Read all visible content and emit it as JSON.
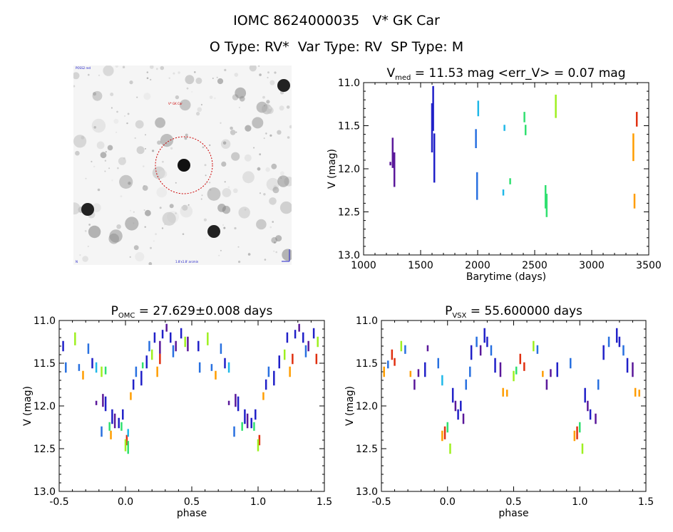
{
  "header": {
    "line1": "IOMC 8624000035   V* GK Car",
    "line2": "O Type: RV*  Var Type: RV  SP Type: M"
  },
  "finder_chart": {
    "label_top_left": "POSS2 red",
    "label_target": "V* GK Car",
    "label_bottom_left": "N",
    "label_bottom_center": "1.8'x1.8' arcmin",
    "circle_color": "#cc0000"
  },
  "colors": [
    "#5a189a",
    "#2020c8",
    "#2870e0",
    "#20b8e8",
    "#30e070",
    "#9ef020",
    "#ff9d00",
    "#e03010"
  ],
  "chart_data": [
    {
      "type": "scatter",
      "id": "lightcurve",
      "title_main": "V",
      "title_sub": "med",
      "title_rest": " = 11.53 mag <err_V> = 0.07 mag",
      "xlabel": "Barytime (days)",
      "ylabel": "V (mag)",
      "xlim": [
        1000,
        3500
      ],
      "ylim": [
        13.0,
        11.0
      ],
      "xticks": [
        1000,
        1500,
        2000,
        2500,
        3000,
        3500
      ],
      "yticks": [
        11.0,
        11.5,
        12.0,
        12.5,
        13.0
      ],
      "segments": [
        {
          "x": 1235,
          "y0": 11.93,
          "y1": 11.95,
          "c": 0
        },
        {
          "x": 1255,
          "y0": 11.65,
          "y1": 11.98,
          "c": 0
        },
        {
          "x": 1270,
          "y0": 11.82,
          "y1": 12.2,
          "c": 0
        },
        {
          "x": 1600,
          "y0": 11.25,
          "y1": 11.8,
          "c": 1
        },
        {
          "x": 1610,
          "y0": 11.05,
          "y1": 11.55,
          "c": 1
        },
        {
          "x": 1620,
          "y0": 11.6,
          "y1": 12.15,
          "c": 1
        },
        {
          "x": 1985,
          "y0": 11.55,
          "y1": 11.75,
          "c": 2
        },
        {
          "x": 1995,
          "y0": 12.05,
          "y1": 12.35,
          "c": 2
        },
        {
          "x": 2005,
          "y0": 11.22,
          "y1": 11.38,
          "c": 3
        },
        {
          "x": 2225,
          "y0": 12.25,
          "y1": 12.3,
          "c": 3
        },
        {
          "x": 2235,
          "y0": 11.5,
          "y1": 11.55,
          "c": 3
        },
        {
          "x": 2285,
          "y0": 12.12,
          "y1": 12.17,
          "c": 4
        },
        {
          "x": 2410,
          "y0": 11.35,
          "y1": 11.45,
          "c": 4
        },
        {
          "x": 2420,
          "y0": 11.5,
          "y1": 11.6,
          "c": 4
        },
        {
          "x": 2595,
          "y0": 12.2,
          "y1": 12.45,
          "c": 4
        },
        {
          "x": 2605,
          "y0": 12.3,
          "y1": 12.55,
          "c": 4
        },
        {
          "x": 2685,
          "y0": 11.15,
          "y1": 11.4,
          "c": 5
        },
        {
          "x": 3365,
          "y0": 11.6,
          "y1": 11.9,
          "c": 6
        },
        {
          "x": 3375,
          "y0": 12.3,
          "y1": 12.45,
          "c": 6
        },
        {
          "x": 3395,
          "y0": 11.35,
          "y1": 11.5,
          "c": 7
        }
      ]
    },
    {
      "type": "scatter",
      "id": "phase_omc",
      "title_main": "P",
      "title_sub": "OMC",
      "title_rest": " = 27.629±0.008 days",
      "xlabel": "phase",
      "ylabel": "V (mag)",
      "xlim": [
        -0.5,
        1.5
      ],
      "ylim": [
        13.0,
        11.0
      ],
      "xticks": [
        -0.5,
        0.0,
        0.5,
        1.0,
        1.5
      ],
      "yticks": [
        11.0,
        11.5,
        12.0,
        12.5,
        13.0
      ],
      "segments": [
        {
          "x": -0.47,
          "y0": 11.25,
          "y1": 11.35,
          "c": 1
        },
        {
          "x": -0.45,
          "y0": 11.5,
          "y1": 11.6,
          "c": 2
        },
        {
          "x": -0.38,
          "y0": 11.15,
          "y1": 11.28,
          "c": 5
        },
        {
          "x": -0.35,
          "y0": 11.52,
          "y1": 11.58,
          "c": 2
        },
        {
          "x": -0.32,
          "y0": 11.6,
          "y1": 11.68,
          "c": 6
        },
        {
          "x": -0.28,
          "y0": 11.28,
          "y1": 11.38,
          "c": 2
        },
        {
          "x": -0.25,
          "y0": 11.45,
          "y1": 11.55,
          "c": 1
        },
        {
          "x": -0.22,
          "y0": 11.5,
          "y1": 11.6,
          "c": 3
        },
        {
          "x": -0.18,
          "y0": 11.55,
          "y1": 11.65,
          "c": 5
        },
        {
          "x": -0.15,
          "y0": 11.55,
          "y1": 11.62,
          "c": 4
        },
        {
          "x": -0.22,
          "y0": 11.95,
          "y1": 11.98,
          "c": 0
        },
        {
          "x": -0.17,
          "y0": 11.87,
          "y1": 12.0,
          "c": 0
        },
        {
          "x": -0.15,
          "y0": 11.9,
          "y1": 12.05,
          "c": 1
        },
        {
          "x": -0.1,
          "y0": 12.05,
          "y1": 12.2,
          "c": 1
        },
        {
          "x": -0.08,
          "y0": 12.1,
          "y1": 12.25,
          "c": 0
        },
        {
          "x": -0.05,
          "y0": 12.15,
          "y1": 12.25,
          "c": 1
        },
        {
          "x": -0.03,
          "y0": 12.2,
          "y1": 12.28,
          "c": 4
        },
        {
          "x": -0.02,
          "y0": 12.05,
          "y1": 12.15,
          "c": 1
        },
        {
          "x": 0.01,
          "y0": 12.35,
          "y1": 12.45,
          "c": 7
        },
        {
          "x": 0.02,
          "y0": 12.28,
          "y1": 12.35,
          "c": 3
        },
        {
          "x": -0.11,
          "y0": 12.3,
          "y1": 12.38,
          "c": 6
        },
        {
          "x": -0.12,
          "y0": 12.2,
          "y1": 12.28,
          "c": 4
        },
        {
          "x": -0.18,
          "y0": 12.25,
          "y1": 12.35,
          "c": 2
        },
        {
          "x": 0.0,
          "y0": 12.4,
          "y1": 12.52,
          "c": 5
        },
        {
          "x": 0.02,
          "y0": 12.42,
          "y1": 12.55,
          "c": 4
        },
        {
          "x": 0.04,
          "y0": 11.85,
          "y1": 11.92,
          "c": 6
        },
        {
          "x": 0.06,
          "y0": 11.7,
          "y1": 11.8,
          "c": 1
        },
        {
          "x": 0.08,
          "y0": 11.55,
          "y1": 11.65,
          "c": 2
        },
        {
          "x": 0.12,
          "y0": 11.6,
          "y1": 11.75,
          "c": 1
        },
        {
          "x": 0.13,
          "y0": 11.5,
          "y1": 11.55,
          "c": 4
        },
        {
          "x": 0.16,
          "y0": 11.42,
          "y1": 11.55,
          "c": 1
        },
        {
          "x": 0.2,
          "y0": 11.35,
          "y1": 11.45,
          "c": 5
        },
        {
          "x": 0.18,
          "y0": 11.25,
          "y1": 11.35,
          "c": 2
        },
        {
          "x": 0.22,
          "y0": 11.15,
          "y1": 11.25,
          "c": 1
        },
        {
          "x": 0.26,
          "y0": 11.25,
          "y1": 11.38,
          "c": 0
        },
        {
          "x": 0.28,
          "y0": 11.12,
          "y1": 11.2,
          "c": 1
        },
        {
          "x": 0.31,
          "y0": 11.05,
          "y1": 11.12,
          "c": 0
        },
        {
          "x": 0.24,
          "y0": 11.55,
          "y1": 11.65,
          "c": 6
        },
        {
          "x": 0.26,
          "y0": 11.4,
          "y1": 11.5,
          "c": 7
        },
        {
          "x": 0.34,
          "y0": 11.15,
          "y1": 11.25,
          "c": 1
        },
        {
          "x": 0.36,
          "y0": 11.3,
          "y1": 11.42,
          "c": 2
        },
        {
          "x": 0.38,
          "y0": 11.25,
          "y1": 11.35,
          "c": 0
        },
        {
          "x": 0.42,
          "y0": 11.1,
          "y1": 11.2,
          "c": 1
        },
        {
          "x": 0.45,
          "y0": 11.2,
          "y1": 11.3,
          "c": 5
        },
        {
          "x": 0.47,
          "y0": 11.2,
          "y1": 11.35,
          "c": 0
        },
        {
          "x": 0.55,
          "y0": 11.25,
          "y1": 11.35,
          "c": 1
        },
        {
          "x": 0.56,
          "y0": 11.5,
          "y1": 11.6,
          "c": 2
        },
        {
          "x": 0.62,
          "y0": 11.15,
          "y1": 11.28,
          "c": 5
        },
        {
          "x": 0.65,
          "y0": 11.52,
          "y1": 11.58,
          "c": 2
        },
        {
          "x": 0.68,
          "y0": 11.6,
          "y1": 11.68,
          "c": 6
        },
        {
          "x": 0.72,
          "y0": 11.28,
          "y1": 11.38,
          "c": 2
        },
        {
          "x": 0.75,
          "y0": 11.45,
          "y1": 11.55,
          "c": 1
        },
        {
          "x": 0.78,
          "y0": 11.5,
          "y1": 11.6,
          "c": 3
        },
        {
          "x": 0.78,
          "y0": 11.95,
          "y1": 11.98,
          "c": 0
        },
        {
          "x": 0.83,
          "y0": 11.87,
          "y1": 12.0,
          "c": 0
        },
        {
          "x": 0.85,
          "y0": 11.9,
          "y1": 12.05,
          "c": 1
        },
        {
          "x": 0.9,
          "y0": 12.05,
          "y1": 12.2,
          "c": 1
        },
        {
          "x": 0.92,
          "y0": 12.1,
          "y1": 12.25,
          "c": 0
        },
        {
          "x": 0.95,
          "y0": 12.15,
          "y1": 12.25,
          "c": 1
        },
        {
          "x": 0.97,
          "y0": 12.2,
          "y1": 12.28,
          "c": 4
        },
        {
          "x": 0.98,
          "y0": 12.05,
          "y1": 12.15,
          "c": 1
        },
        {
          "x": 1.01,
          "y0": 12.35,
          "y1": 12.45,
          "c": 7
        },
        {
          "x": 0.82,
          "y0": 12.25,
          "y1": 12.35,
          "c": 2
        },
        {
          "x": 0.88,
          "y0": 12.2,
          "y1": 12.28,
          "c": 4
        },
        {
          "x": 1.0,
          "y0": 12.4,
          "y1": 12.52,
          "c": 5
        },
        {
          "x": 1.04,
          "y0": 11.85,
          "y1": 11.92,
          "c": 6
        },
        {
          "x": 1.06,
          "y0": 11.7,
          "y1": 11.8,
          "c": 1
        },
        {
          "x": 1.08,
          "y0": 11.55,
          "y1": 11.65,
          "c": 2
        },
        {
          "x": 1.12,
          "y0": 11.6,
          "y1": 11.75,
          "c": 1
        },
        {
          "x": 1.16,
          "y0": 11.42,
          "y1": 11.55,
          "c": 1
        },
        {
          "x": 1.2,
          "y0": 11.35,
          "y1": 11.45,
          "c": 5
        },
        {
          "x": 1.22,
          "y0": 11.15,
          "y1": 11.25,
          "c": 1
        },
        {
          "x": 1.24,
          "y0": 11.55,
          "y1": 11.65,
          "c": 6
        },
        {
          "x": 1.26,
          "y0": 11.4,
          "y1": 11.5,
          "c": 7
        },
        {
          "x": 1.28,
          "y0": 11.12,
          "y1": 11.2,
          "c": 1
        },
        {
          "x": 1.31,
          "y0": 11.05,
          "y1": 11.12,
          "c": 0
        },
        {
          "x": 1.34,
          "y0": 11.15,
          "y1": 11.25,
          "c": 1
        },
        {
          "x": 1.36,
          "y0": 11.3,
          "y1": 11.42,
          "c": 2
        },
        {
          "x": 1.38,
          "y0": 11.25,
          "y1": 11.35,
          "c": 0
        },
        {
          "x": 1.42,
          "y0": 11.1,
          "y1": 11.2,
          "c": 1
        },
        {
          "x": 1.44,
          "y0": 11.4,
          "y1": 11.5,
          "c": 7
        },
        {
          "x": 1.45,
          "y0": 11.2,
          "y1": 11.3,
          "c": 5
        }
      ]
    },
    {
      "type": "scatter",
      "id": "phase_vsx",
      "title_main": "P",
      "title_sub": "VSX",
      "title_rest": " = 55.600000 days",
      "xlabel": "phase",
      "ylabel": "V (mag)",
      "xlim": [
        -0.5,
        1.5
      ],
      "ylim": [
        13.0,
        11.0
      ],
      "xticks": [
        -0.5,
        0.0,
        0.5,
        1.0,
        1.5
      ],
      "yticks": [
        11.0,
        11.5,
        12.0,
        12.5,
        13.0
      ],
      "segments": [
        {
          "x": -0.48,
          "y0": 11.55,
          "y1": 11.65,
          "c": 6
        },
        {
          "x": -0.45,
          "y0": 11.48,
          "y1": 11.55,
          "c": 2
        },
        {
          "x": -0.42,
          "y0": 11.35,
          "y1": 11.45,
          "c": 7
        },
        {
          "x": -0.4,
          "y0": 11.45,
          "y1": 11.52,
          "c": 7
        },
        {
          "x": -0.35,
          "y0": 11.25,
          "y1": 11.35,
          "c": 5
        },
        {
          "x": -0.32,
          "y0": 11.3,
          "y1": 11.38,
          "c": 2
        },
        {
          "x": -0.28,
          "y0": 11.6,
          "y1": 11.65,
          "c": 6
        },
        {
          "x": -0.25,
          "y0": 11.7,
          "y1": 11.8,
          "c": 0
        },
        {
          "x": -0.22,
          "y0": 11.58,
          "y1": 11.65,
          "c": 0
        },
        {
          "x": -0.17,
          "y0": 11.5,
          "y1": 11.65,
          "c": 1
        },
        {
          "x": -0.15,
          "y0": 11.3,
          "y1": 11.35,
          "c": 0
        },
        {
          "x": -0.07,
          "y0": 11.45,
          "y1": 11.55,
          "c": 2
        },
        {
          "x": -0.04,
          "y0": 12.3,
          "y1": 12.4,
          "c": 6
        },
        {
          "x": -0.02,
          "y0": 12.25,
          "y1": 12.38,
          "c": 7
        },
        {
          "x": 0.0,
          "y0": 12.2,
          "y1": 12.3,
          "c": 4
        },
        {
          "x": -0.04,
          "y0": 11.65,
          "y1": 11.75,
          "c": 3
        },
        {
          "x": 0.02,
          "y0": 12.45,
          "y1": 12.55,
          "c": 5
        },
        {
          "x": 0.04,
          "y0": 11.8,
          "y1": 11.95,
          "c": 1
        },
        {
          "x": 0.06,
          "y0": 11.95,
          "y1": 12.05,
          "c": 0
        },
        {
          "x": 0.08,
          "y0": 12.05,
          "y1": 12.15,
          "c": 1
        },
        {
          "x": 0.1,
          "y0": 11.95,
          "y1": 12.05,
          "c": 1
        },
        {
          "x": 0.12,
          "y0": 12.1,
          "y1": 12.2,
          "c": 0
        },
        {
          "x": 0.14,
          "y0": 11.7,
          "y1": 11.8,
          "c": 2
        },
        {
          "x": 0.17,
          "y0": 11.55,
          "y1": 11.65,
          "c": 2
        },
        {
          "x": 0.18,
          "y0": 11.3,
          "y1": 11.45,
          "c": 1
        },
        {
          "x": 0.22,
          "y0": 11.2,
          "y1": 11.3,
          "c": 2
        },
        {
          "x": 0.25,
          "y0": 11.3,
          "y1": 11.4,
          "c": 0
        },
        {
          "x": 0.28,
          "y0": 11.1,
          "y1": 11.25,
          "c": 1
        },
        {
          "x": 0.3,
          "y0": 11.2,
          "y1": 11.3,
          "c": 1
        },
        {
          "x": 0.33,
          "y0": 11.3,
          "y1": 11.4,
          "c": 2
        },
        {
          "x": 0.36,
          "y0": 11.45,
          "y1": 11.6,
          "c": 1
        },
        {
          "x": 0.4,
          "y0": 11.5,
          "y1": 11.65,
          "c": 0
        },
        {
          "x": 0.42,
          "y0": 11.8,
          "y1": 11.88,
          "c": 6
        },
        {
          "x": 0.45,
          "y0": 11.82,
          "y1": 11.88,
          "c": 6
        },
        {
          "x": 0.5,
          "y0": 11.6,
          "y1": 11.7,
          "c": 5
        },
        {
          "x": 0.52,
          "y0": 11.55,
          "y1": 11.62,
          "c": 4
        },
        {
          "x": 0.55,
          "y0": 11.4,
          "y1": 11.5,
          "c": 7
        },
        {
          "x": 0.58,
          "y0": 11.5,
          "y1": 11.58,
          "c": 7
        },
        {
          "x": 0.65,
          "y0": 11.25,
          "y1": 11.35,
          "c": 5
        },
        {
          "x": 0.68,
          "y0": 11.3,
          "y1": 11.38,
          "c": 2
        },
        {
          "x": 0.72,
          "y0": 11.6,
          "y1": 11.65,
          "c": 6
        },
        {
          "x": 0.75,
          "y0": 11.7,
          "y1": 11.8,
          "c": 0
        },
        {
          "x": 0.78,
          "y0": 11.58,
          "y1": 11.65,
          "c": 0
        },
        {
          "x": 0.83,
          "y0": 11.5,
          "y1": 11.65,
          "c": 1
        },
        {
          "x": 0.93,
          "y0": 11.45,
          "y1": 11.55,
          "c": 2
        },
        {
          "x": 0.96,
          "y0": 12.3,
          "y1": 12.4,
          "c": 6
        },
        {
          "x": 0.98,
          "y0": 12.25,
          "y1": 12.38,
          "c": 7
        },
        {
          "x": 1.0,
          "y0": 12.2,
          "y1": 12.3,
          "c": 4
        },
        {
          "x": 1.02,
          "y0": 12.45,
          "y1": 12.55,
          "c": 5
        },
        {
          "x": 1.04,
          "y0": 11.8,
          "y1": 11.95,
          "c": 1
        },
        {
          "x": 1.06,
          "y0": 11.95,
          "y1": 12.05,
          "c": 0
        },
        {
          "x": 1.08,
          "y0": 12.05,
          "y1": 12.15,
          "c": 1
        },
        {
          "x": 1.12,
          "y0": 12.1,
          "y1": 12.2,
          "c": 0
        },
        {
          "x": 1.14,
          "y0": 11.7,
          "y1": 11.8,
          "c": 2
        },
        {
          "x": 1.18,
          "y0": 11.3,
          "y1": 11.45,
          "c": 1
        },
        {
          "x": 1.22,
          "y0": 11.2,
          "y1": 11.3,
          "c": 2
        },
        {
          "x": 1.28,
          "y0": 11.1,
          "y1": 11.25,
          "c": 1
        },
        {
          "x": 1.3,
          "y0": 11.2,
          "y1": 11.3,
          "c": 1
        },
        {
          "x": 1.33,
          "y0": 11.3,
          "y1": 11.4,
          "c": 2
        },
        {
          "x": 1.36,
          "y0": 11.45,
          "y1": 11.6,
          "c": 1
        },
        {
          "x": 1.4,
          "y0": 11.5,
          "y1": 11.65,
          "c": 0
        },
        {
          "x": 1.42,
          "y0": 11.8,
          "y1": 11.88,
          "c": 6
        },
        {
          "x": 1.45,
          "y0": 11.82,
          "y1": 11.88,
          "c": 6
        }
      ]
    }
  ]
}
